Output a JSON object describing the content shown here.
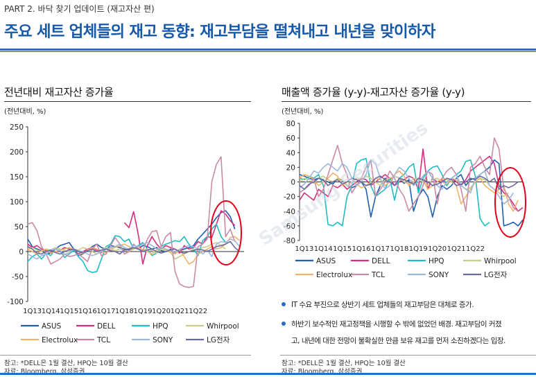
{
  "header": {
    "part": "PART 2. 바닥 찾기 업데이트 (재고자산 편)",
    "headline": "주요 세트 업체들의 재고 동향: 재고부담을 떨쳐내고 내년을 맞이하자"
  },
  "left_panel": {
    "title": "전년대비 재고자산 증가율",
    "unit": "(전년대비, %)",
    "note1": "참고: *DELL은 1월 결산, HPQ는 10월 결산",
    "note2": "자료: Bloomberg, 삼성증권"
  },
  "right_panel": {
    "title": "매출액 증가율 (y-y)-재고자산 증가율 (y-y)",
    "unit": "(전년대비, %)",
    "note1": "참고: *DELL은 1월 결산, HPQ는 10월 결산",
    "note2": "자료: Bloomberg, 삼성증권"
  },
  "bullets": [
    "IT 수요 부진으로 상반기 세트 업체들의 재고부담은 대체로 증가.",
    "하반기 보수적인 재고정책을 시행할 수 밖에 없었던 배경. 재고부담이 커졌",
    "고, 내년에 대한 전망이 불확실한 만큼 보유 재고를 먼저 소진하겠다는 입장."
  ],
  "watermark": "Samsung Securities",
  "colors": {
    "brand": "#1659a8",
    "highlight_circle": "#e3001b"
  },
  "chart_data": [
    {
      "type": "line",
      "x_labels": [
        "1Q13",
        "1Q14",
        "1Q15",
        "1Q16",
        "1Q17",
        "1Q18",
        "1Q19",
        "1Q20",
        "1Q21",
        "1Q22"
      ],
      "ylim": [
        -100,
        250
      ],
      "yticks": [
        -100,
        -50,
        0,
        50,
        100,
        150,
        200,
        250
      ],
      "grid": false,
      "legend_position": "bottom",
      "series": [
        {
          "name": "ASUS",
          "color": "#1f5fae",
          "start": 0,
          "values": [
            25,
            10,
            5,
            2,
            -5,
            -3,
            5,
            12,
            15,
            18,
            5,
            -8,
            -5,
            2,
            10,
            15,
            8,
            5,
            12,
            10,
            8,
            5,
            3,
            8,
            5,
            12,
            10,
            5,
            8,
            2,
            0,
            5,
            -3,
            2,
            5,
            8,
            12,
            25,
            35,
            45,
            55,
            68,
            78,
            82,
            70,
            45
          ]
        },
        {
          "name": "DELL",
          "color": "#d62d7e",
          "start": 0,
          "values": [
            15,
            8,
            12,
            5,
            2,
            -3,
            5,
            2,
            8,
            5,
            3,
            -5,
            0,
            5,
            8,
            3,
            -2,
            5,
            null,
            null,
            null,
            58,
            48,
            80,
            35,
            -25,
            12,
            30,
            15,
            5,
            12,
            8,
            5,
            -3,
            12,
            5,
            8,
            20,
            15,
            30,
            28,
            55,
            82,
            75,
            62,
            52
          ]
        },
        {
          "name": "HPQ",
          "color": "#1fbcc4",
          "start": 0,
          "values": [
            -20,
            -10,
            -5,
            -15,
            -3,
            -8,
            5,
            2,
            -12,
            -5,
            3,
            -10,
            -20,
            -38,
            -42,
            -40,
            -15,
            10,
            15,
            32,
            30,
            20,
            25,
            5,
            12,
            18,
            5,
            -8,
            -3,
            10,
            15,
            18,
            22,
            20,
            30,
            15,
            5,
            -8,
            22,
            30,
            45,
            55,
            30,
            18
          ]
        },
        {
          "name": "Whirpool",
          "color": "#c9cb8a",
          "start": 0,
          "values": [
            5,
            8,
            3,
            0,
            5,
            3,
            8,
            5,
            2,
            0,
            5,
            3,
            8,
            5,
            0,
            -5,
            3,
            8,
            5,
            2,
            5,
            3,
            0,
            5,
            8,
            3,
            5,
            2,
            -3,
            5,
            3,
            -2,
            -15,
            -10,
            -5,
            0,
            5,
            3,
            8,
            10,
            15,
            18,
            12,
            5
          ]
        },
        {
          "name": "Electrolux",
          "color": "#f2b26a",
          "start": 0,
          "values": [
            5,
            0,
            -5,
            2,
            5,
            -3,
            0,
            3,
            5,
            8,
            5,
            0,
            -5,
            3,
            8,
            5,
            0,
            -3,
            5,
            8,
            12,
            15,
            10,
            5,
            8,
            3,
            0,
            -5,
            3,
            8,
            5,
            0,
            -5,
            3,
            -10,
            -25,
            -20,
            -5,
            0,
            5,
            10,
            5,
            8,
            15,
            28,
            30,
            22
          ]
        },
        {
          "name": "TCL",
          "color": "#c98aa5",
          "start": 0,
          "values": [
            55,
            58,
            42,
            10,
            -5,
            -25,
            -20,
            -15,
            -5,
            -10,
            -8,
            -5,
            -12,
            -20,
            5,
            15,
            -8,
            -5,
            12,
            28,
            15,
            -5,
            0,
            15,
            5,
            2,
            25,
            40,
            42,
            10,
            30,
            38,
            -40,
            -65,
            -70,
            -72,
            -70,
            10,
            15,
            25,
            140,
            175,
            190,
            30,
            45,
            20
          ]
        },
        {
          "name": "SONY",
          "color": "#9bb8dd",
          "start": 0,
          "values": [
            -5,
            -10,
            -15,
            -8,
            -5,
            3,
            5,
            2,
            -5,
            -3,
            5,
            2,
            0,
            -5,
            -8,
            -5,
            0,
            5,
            8,
            10,
            15,
            8,
            5,
            12,
            10,
            15,
            18,
            12,
            5,
            8,
            5,
            3,
            -2,
            5,
            8,
            12,
            10,
            5,
            -5,
            3,
            -10,
            15,
            20,
            18,
            25,
            22,
            10
          ]
        },
        {
          "name": "LG전자",
          "color": "#6a6aa0",
          "start": 0,
          "values": [
            10,
            5,
            -3,
            -5,
            0,
            3,
            -2,
            -5,
            0,
            3,
            5,
            0,
            -3,
            2,
            5,
            0,
            3,
            5,
            2,
            0,
            -5,
            3,
            5,
            8,
            5,
            0,
            3,
            5,
            0,
            -3,
            0,
            3,
            5,
            0,
            -3,
            0,
            2,
            5,
            3,
            0,
            5,
            10,
            12,
            15,
            20,
            8,
            0
          ]
        }
      ]
    },
    {
      "type": "line",
      "x_labels": [
        "1Q13",
        "1Q14",
        "1Q15",
        "1Q16",
        "1Q17",
        "1Q18",
        "1Q19",
        "1Q20",
        "1Q21",
        "1Q22"
      ],
      "ylim": [
        -80,
        80
      ],
      "yticks": [
        -80,
        -60,
        -40,
        -20,
        0,
        20,
        40,
        60,
        80
      ],
      "grid": false,
      "legend_position": "bottom",
      "series": [
        {
          "name": "ASUS",
          "color": "#1f5fae",
          "start": 0,
          "values": [
            10,
            8,
            5,
            3,
            5,
            2,
            0,
            -3,
            5,
            2,
            -5,
            -8,
            -5,
            0,
            -10,
            -48,
            -20,
            -5,
            5,
            3,
            8,
            5,
            -2,
            3,
            -40,
            -20,
            -10,
            -20,
            -48,
            -20,
            -5,
            -10,
            -5,
            5,
            10,
            -5,
            3,
            5,
            10,
            15,
            20,
            30,
            25,
            -60,
            -58,
            -55,
            -60,
            -52
          ]
        },
        {
          "name": "DELL",
          "color": "#d62d7e",
          "start": 0,
          "values": [
            -25,
            -15,
            -20,
            -25,
            -10,
            -15,
            -20,
            -5,
            -8,
            -3,
            -10,
            -5,
            0,
            5,
            3,
            -5,
            0,
            5,
            10,
            5,
            -5,
            0,
            3,
            8,
            5,
            -10,
            45,
            -10,
            5,
            0,
            3,
            -5,
            5,
            0,
            -5,
            3,
            15,
            20,
            25,
            30,
            35,
            25,
            -5,
            -15,
            -20,
            -30,
            -40,
            -35
          ]
        },
        {
          "name": "HPQ",
          "color": "#1fbcc4",
          "start": 0,
          "values": [
            5,
            3,
            8,
            5,
            10,
            -5,
            -58,
            -60,
            -55,
            -60,
            -20,
            -5,
            25,
            30,
            32,
            -5,
            -20,
            -15,
            -10,
            5,
            -25,
            5,
            10,
            20,
            25,
            -15,
            5,
            15,
            20,
            22,
            10,
            -5,
            5,
            10,
            15,
            28,
            30,
            8,
            -50,
            -60,
            -55
          ]
        },
        {
          "name": "Whirpool",
          "color": "#c9cb8a",
          "start": 0,
          "values": [
            0,
            5,
            3,
            -2,
            5,
            8,
            3,
            0,
            5,
            3,
            -5,
            0,
            5,
            3,
            8,
            5,
            0,
            -5,
            3,
            5,
            8,
            5,
            0,
            -3,
            5,
            3,
            0,
            -5,
            3,
            5,
            0,
            -3,
            5,
            3,
            -5,
            -10,
            -8,
            0,
            5,
            3,
            -5,
            -10,
            -15,
            -20,
            -15
          ]
        },
        {
          "name": "Electrolux",
          "color": "#f2b26a",
          "start": 0,
          "values": [
            5,
            10,
            8,
            3,
            -5,
            0,
            5,
            12,
            8,
            -5,
            0,
            5,
            -3,
            -8,
            -5,
            0,
            5,
            3,
            -5,
            0,
            10,
            15,
            8,
            -5,
            0,
            5,
            3,
            -10,
            -5,
            0,
            5,
            3,
            0,
            -5,
            -30,
            -20,
            -10,
            0,
            5,
            -5,
            -10,
            -15,
            -10,
            -5,
            -30,
            -40,
            -25
          ]
        },
        {
          "name": "TCL",
          "color": "#c98aa5",
          "start": 0,
          "values": [
            -15,
            -10,
            -5,
            5,
            -20,
            -10,
            10,
            30,
            50,
            25,
            10,
            -15,
            -5,
            5,
            20,
            30,
            -20,
            -10,
            0,
            15,
            5,
            -10,
            -20,
            -40,
            -30,
            -20,
            -5,
            15,
            10,
            -30,
            5,
            15,
            20,
            10,
            -10,
            -40,
            20,
            25,
            35,
            20,
            10,
            60,
            45,
            -10,
            -20,
            -35,
            -40
          ]
        },
        {
          "name": "SONY",
          "color": "#9bb8dd",
          "start": 0,
          "values": [
            -8,
            -3,
            5,
            15,
            12,
            20,
            25,
            20,
            15,
            25,
            20,
            5,
            -5,
            0,
            10,
            30,
            25,
            5,
            -10,
            -5,
            10,
            20,
            15,
            5,
            -5,
            0,
            8,
            15,
            5,
            -5,
            -10,
            0,
            5,
            10,
            -5,
            -10,
            -15,
            5,
            10,
            15,
            -5,
            -10,
            -20,
            -30,
            -25,
            -15
          ]
        },
        {
          "name": "LG전자",
          "color": "#6a6aa0",
          "start": 0,
          "values": [
            -5,
            -10,
            -3,
            0,
            5,
            3,
            -5,
            0,
            3,
            -3,
            0,
            5,
            3,
            0,
            -5,
            -3,
            5,
            8,
            3,
            0,
            -5,
            5,
            3,
            0,
            -3,
            5,
            3,
            0,
            -5,
            -3,
            0,
            5,
            3,
            -5,
            -3,
            0,
            5,
            3,
            8,
            5,
            0,
            5,
            -10,
            -5,
            -8,
            -5,
            0
          ]
        }
      ]
    }
  ]
}
